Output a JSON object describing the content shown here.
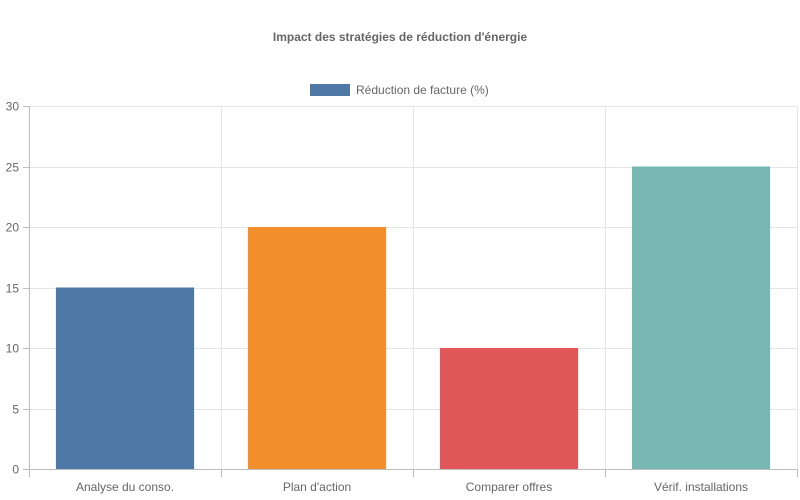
{
  "chart_data": {
    "type": "bar",
    "title": "Impact des stratégies de réduction d'énergie",
    "categories": [
      "Analyse du conso.",
      "Plan d'action",
      "Comparer offres",
      "Vérif. installations"
    ],
    "series": [
      {
        "name": "Réduction de facture (%)",
        "values": [
          15,
          20,
          10,
          25
        ],
        "colors": [
          "#4e79a7",
          "#f28e2b",
          "#e15759",
          "#76b7b2"
        ]
      }
    ],
    "legend": {
      "position": "top",
      "swatch_color": "#4e79a7"
    },
    "ylim": [
      0,
      30
    ],
    "yticks": [
      0,
      5,
      10,
      15,
      20,
      25,
      30
    ],
    "grid": true,
    "xlabel": "",
    "ylabel": ""
  }
}
